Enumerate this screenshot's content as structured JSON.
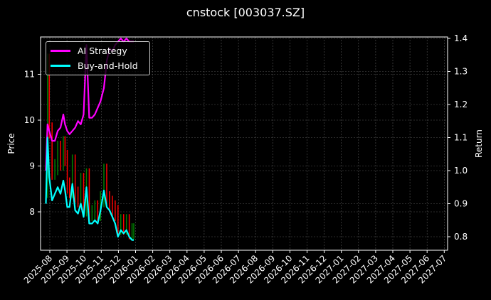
{
  "chart_data": {
    "type": "line",
    "title": "cnstock [003037.SZ]",
    "xlabel": "",
    "ylabel": "Price",
    "y2label": "Return",
    "ylim": [
      7.2,
      11.8
    ],
    "y2lim": [
      0.76,
      1.41
    ],
    "grid": true,
    "legend_position": "upper left",
    "x_tick_labels": [
      "2025-08",
      "2025-09",
      "2025-10",
      "2025-11",
      "2025-12",
      "2026-01",
      "2026-02",
      "2026-03",
      "2026-04",
      "2026-05",
      "2026-06",
      "2026-07",
      "2026-08",
      "2026-09",
      "2026-10",
      "2026-11",
      "2026-12",
      "2027-01",
      "2027-02",
      "2027-03",
      "2027-04",
      "2027-05",
      "2027-06",
      "2027-07"
    ],
    "y_ticks": [
      8,
      9,
      10,
      11
    ],
    "y2_ticks": [
      0.8,
      0.9,
      1.0,
      1.1,
      1.2,
      1.3,
      1.4
    ],
    "legend": [
      "AI Strategy",
      "Buy-and-Hold"
    ],
    "colors": {
      "ai_strategy": "#ff00ff",
      "buy_and_hold": "#00ffff",
      "up_candle": "#008000",
      "down_candle": "#ff0000",
      "grid": "#555555"
    },
    "x": [
      "2025-07-25",
      "2025-07-28",
      "2025-07-31",
      "2025-08-05",
      "2025-08-10",
      "2025-08-15",
      "2025-08-20",
      "2025-08-25",
      "2025-08-28",
      "2025-09-01",
      "2025-09-05",
      "2025-09-10",
      "2025-09-15",
      "2025-09-20",
      "2025-09-25",
      "2025-09-30",
      "2025-10-05",
      "2025-10-10",
      "2025-10-15",
      "2025-10-20",
      "2025-10-25",
      "2025-10-30",
      "2025-11-05",
      "2025-11-10",
      "2025-11-15",
      "2025-11-20",
      "2025-11-25",
      "2025-11-30",
      "2025-12-05",
      "2025-12-10",
      "2025-12-15",
      "2025-12-20",
      "2025-12-25",
      "2025-12-28"
    ],
    "series": [
      {
        "name": "AI Strategy",
        "axis": "right",
        "values": [
          1.0,
          1.14,
          1.12,
          1.09,
          1.09,
          1.12,
          1.13,
          1.17,
          1.14,
          1.12,
          1.11,
          1.12,
          1.13,
          1.15,
          1.14,
          1.17,
          1.38,
          1.16,
          1.16,
          1.17,
          1.19,
          1.21,
          1.25,
          1.33,
          1.37,
          1.36,
          1.38,
          1.39,
          1.4,
          1.39,
          1.4,
          1.39,
          1.39,
          1.39
        ]
      },
      {
        "name": "Buy-and-Hold",
        "axis": "right",
        "values": [
          0.9,
          1.1,
          0.98,
          0.91,
          0.93,
          0.95,
          0.93,
          0.97,
          0.94,
          0.89,
          0.89,
          0.96,
          0.88,
          0.87,
          0.9,
          0.86,
          0.95,
          0.84,
          0.84,
          0.85,
          0.84,
          0.88,
          0.94,
          0.89,
          0.88,
          0.86,
          0.84,
          0.8,
          0.82,
          0.81,
          0.82,
          0.8,
          0.79,
          0.79
        ]
      },
      {
        "name": "Price (candles)",
        "axis": "left",
        "values": [
          8.4,
          11.2,
          9.7,
          8.8,
          8.9,
          9.3,
          9.0,
          9.4,
          9.1,
          8.5,
          8.4,
          9.0,
          8.3,
          8.2,
          8.6,
          8.0,
          8.7,
          7.9,
          7.9,
          8.0,
          7.9,
          8.2,
          8.8,
          8.2,
          8.1,
          8.0,
          7.9,
          7.6,
          7.7,
          7.6,
          7.7,
          7.5,
          7.5,
          7.5
        ]
      }
    ]
  }
}
